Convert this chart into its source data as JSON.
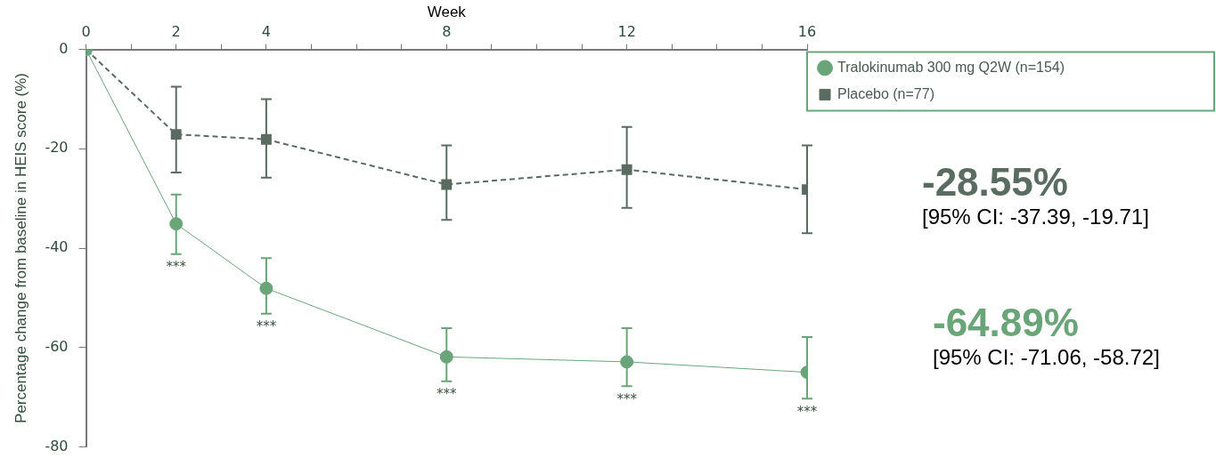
{
  "chart_data": {
    "type": "line",
    "xlabel": "Week",
    "ylabel": "Percentage change from baseline in HEIS score (%)",
    "x": [
      0,
      2,
      4,
      8,
      12,
      16
    ],
    "xlim": [
      0,
      16
    ],
    "xticks": [
      0,
      {
        "value": 1,
        "label": null
      },
      2,
      {
        "value": 3,
        "label": null
      },
      4,
      {
        "value": 5,
        "label": null
      },
      {
        "value": 6,
        "label": null
      },
      {
        "value": 7,
        "label": null
      },
      8,
      {
        "value": 9,
        "label": null
      },
      {
        "value": 10,
        "label": null
      },
      {
        "value": 11,
        "label": null
      },
      12,
      {
        "value": 13,
        "label": null
      },
      {
        "value": 14,
        "label": null
      },
      {
        "value": 15,
        "label": null
      },
      16
    ],
    "ylim": [
      -80,
      0
    ],
    "yticks": [
      -80,
      -60,
      -40,
      -20,
      0
    ],
    "grid": false,
    "legend": "top right",
    "series": [
      {
        "name": "Tralokinumab 300 mg Q2W (n=154)",
        "color": "#6aa57a",
        "marker": "circle",
        "line_style": "solid",
        "values": [
          0,
          -35.1,
          -48.1,
          -61.9,
          -62.9,
          -65.0
        ],
        "errors": [
          null,
          [
            -41.2,
            -29.2
          ],
          [
            -53.2,
            -42.0
          ],
          [
            -66.8,
            -56.1
          ],
          [
            -67.8,
            -56.1
          ],
          [
            -70.3,
            -57.9
          ]
        ]
      },
      {
        "name": "Placebo (n=77)",
        "color": "#5a6b62",
        "marker": "square",
        "line_style": "dashed",
        "values": [
          0,
          -17.1,
          -18.1,
          -27.2,
          -24.2,
          -28.2
        ],
        "errors": [
          null,
          [
            -24.8,
            -7.5
          ],
          [
            -25.8,
            -10.0
          ],
          [
            -34.3,
            -19.3
          ],
          [
            -31.9,
            -15.6
          ],
          [
            -37.0,
            -19.3
          ]
        ]
      }
    ],
    "annotations": [
      {
        "text": "***",
        "x": 2,
        "y": -35.1
      },
      {
        "text": "***",
        "x": 4,
        "y": -48.1
      },
      {
        "text": "***",
        "x": 8,
        "y": -61.9
      },
      {
        "text": "***",
        "x": 12,
        "y": -62.9
      },
      {
        "text": "***",
        "x": 16,
        "y": -65.0
      },
      "-28.55%",
      "[95% CI: -37.39, -19.71]",
      "-64.89%",
      "[95% CI: -71.06, -58.72]"
    ]
  }
}
